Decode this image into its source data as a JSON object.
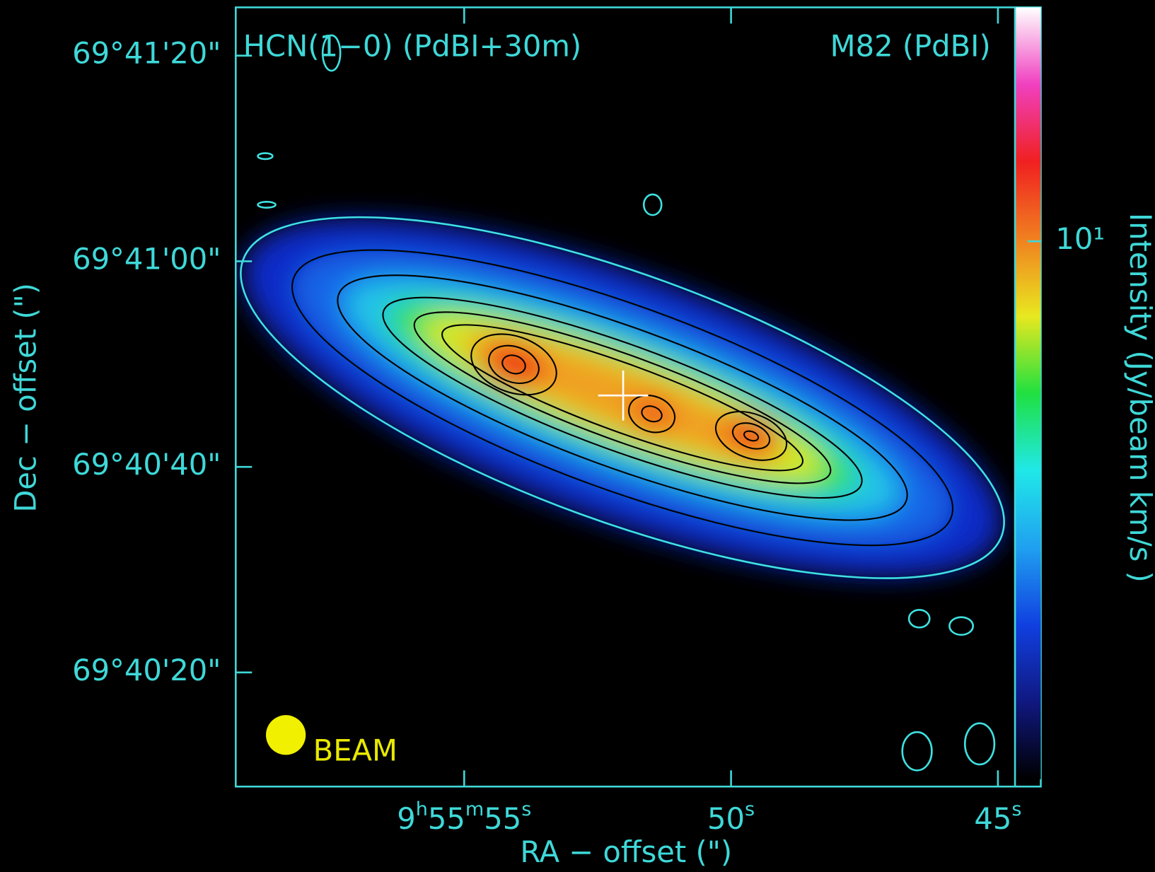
{
  "chart_data": {
    "type": "image",
    "title_left": "HCN(1−0) (PdBI+30m)",
    "title_right": "M82 (PdBI)",
    "beam_label": "BEAM",
    "x_label": "RA − offset (\")",
    "y_label": "Dec − offset (\")",
    "xlim": [
      59.28,
      44.68
    ],
    "xticks": [
      {
        "value": 55,
        "label": "9h55m55s"
      },
      {
        "value": 50,
        "label": "50s"
      },
      {
        "value": 45,
        "label": "45s"
      }
    ],
    "ylim": [
      8.9,
      84.7
    ],
    "yticks": [
      {
        "value": 20,
        "label": "69°40'20\""
      },
      {
        "value": 40,
        "label": "69°40'40\""
      },
      {
        "value": 60,
        "label": "69°41'00\""
      },
      {
        "value": 80,
        "label": "69°41'20\""
      }
    ],
    "colorbar": {
      "label": "Intensity (Jy/beam km/s )",
      "scale": "log",
      "lim": [
        0.8,
        30
      ],
      "ticks": [
        {
          "value": 10,
          "label": "10¹"
        }
      ],
      "colormap": [
        "#000000",
        "#101880",
        "#1040e0",
        "#20a0f0",
        "#20e8e8",
        "#20e040",
        "#e8e820",
        "#f08020",
        "#f02020",
        "#f040c0",
        "#ffffff"
      ]
    }
  }
}
